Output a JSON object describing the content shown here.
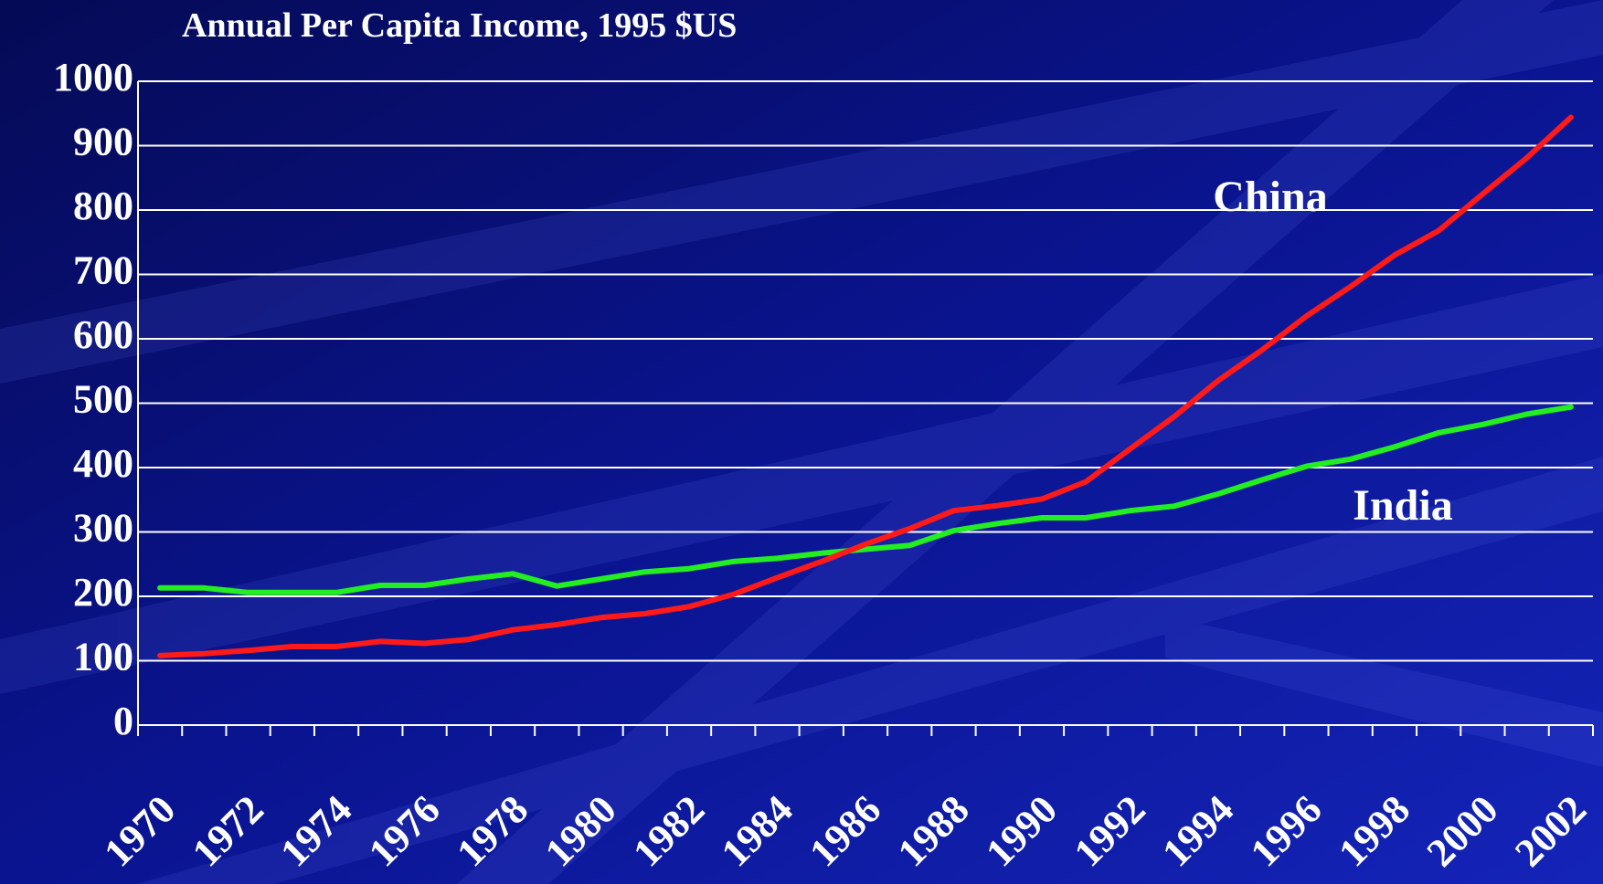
{
  "chart_data": {
    "type": "line",
    "title": "Annual Per Capita Income, 1995 $US",
    "categories": [
      "1970",
      null,
      "1972",
      null,
      "1974",
      null,
      "1976",
      null,
      "1978",
      null,
      "1980",
      null,
      "1982",
      null,
      "1984",
      null,
      "1986",
      null,
      "1988",
      null,
      "1990",
      null,
      "1992",
      null,
      "1994",
      null,
      "1996",
      null,
      "1998",
      null,
      "2000",
      null,
      "2002"
    ],
    "series": [
      {
        "name": "China",
        "color": "#ff1a1a",
        "values": [
          108,
          111,
          116,
          122,
          122,
          130,
          127,
          133,
          148,
          156,
          167,
          173,
          184,
          203,
          229,
          254,
          281,
          305,
          333,
          341,
          351,
          378,
          429,
          479,
          535,
          583,
          635,
          681,
          730,
          768,
          825,
          881,
          944
        ]
      },
      {
        "name": "India",
        "color": "#22ee22",
        "values": [
          213,
          213,
          206,
          206,
          206,
          217,
          217,
          227,
          235,
          216,
          227,
          238,
          243,
          254,
          259,
          267,
          273,
          279,
          302,
          313,
          322,
          322,
          333,
          340,
          359,
          381,
          402,
          413,
          432,
          454,
          467,
          483,
          494
        ]
      }
    ],
    "ylim": [
      0,
      1000
    ],
    "yticks": [
      0,
      100,
      200,
      300,
      400,
      500,
      600,
      700,
      800,
      900,
      1000
    ],
    "grid": true
  }
}
